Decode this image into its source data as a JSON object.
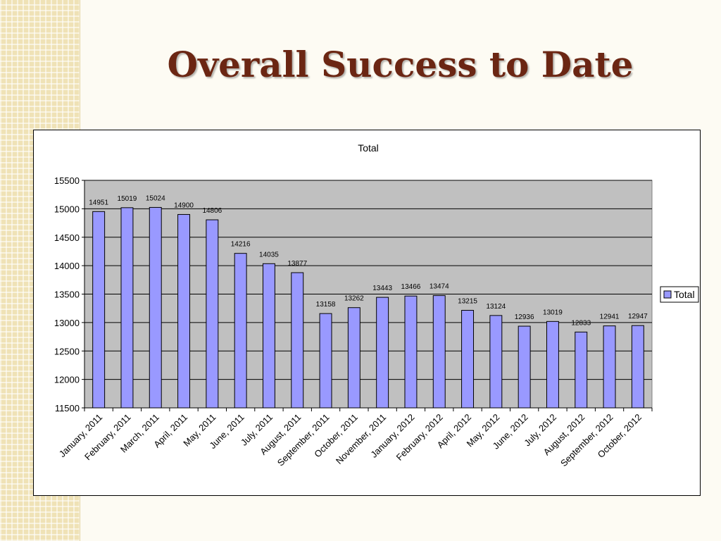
{
  "slide": {
    "title": "Overall Success to Date"
  },
  "colors": {
    "title": "#6b2613",
    "bar_fill": "#9999ff",
    "bar_stroke": "#000000",
    "plot_background": "#c0c0c0",
    "side_pattern": "#efe2b6"
  },
  "chart_data": {
    "type": "bar",
    "title": "Total",
    "xlabel": "",
    "ylabel": "",
    "ylim": [
      11500,
      15500
    ],
    "y_ticks": [
      11500,
      12000,
      12500,
      13000,
      13500,
      14000,
      14500,
      15000,
      15500
    ],
    "grid": true,
    "legend_position": "right",
    "categories": [
      "January, 2011",
      "February, 2011",
      "March, 2011",
      "April, 2011",
      "May, 2011",
      "June, 2011",
      "July, 2011",
      "August, 2011",
      "September, 2011",
      "October, 2011",
      "November, 2011",
      "January, 2012",
      "February, 2012",
      "April, 2012",
      "May, 2012",
      "June, 2012",
      "July, 2012",
      "August, 2012",
      "September, 2012",
      "October, 2012"
    ],
    "series": [
      {
        "name": "Total",
        "values": [
          14951,
          15019,
          15024,
          14900,
          14806,
          14216,
          14035,
          13877,
          13158,
          13262,
          13443,
          13466,
          13474,
          13215,
          13124,
          12936,
          13019,
          12833,
          12941,
          12947
        ]
      }
    ]
  }
}
